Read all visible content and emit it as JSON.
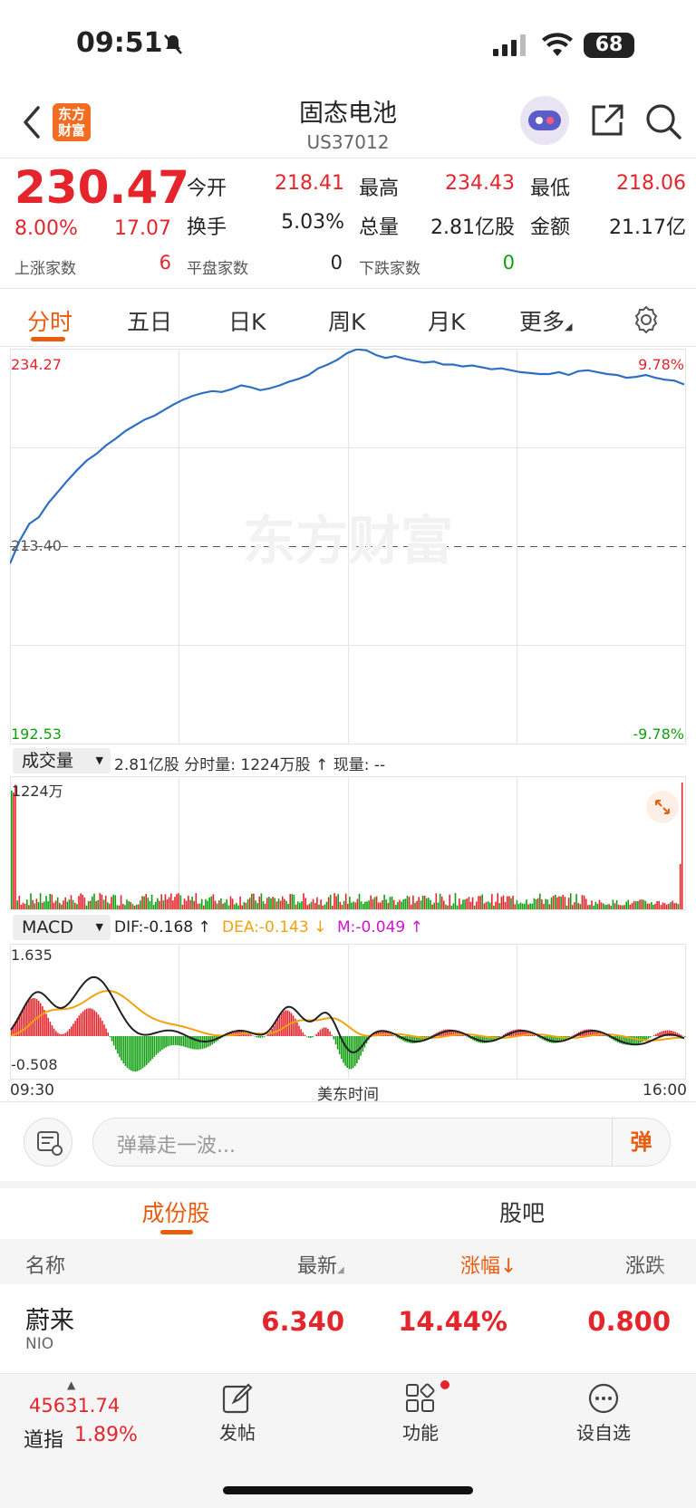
{
  "status_bar": {
    "time": "09:51",
    "battery": "68"
  },
  "header": {
    "back_icon": "chevron-left-icon",
    "logo_line1": "东方",
    "logo_line2": "财富",
    "title": "固态电池",
    "code": "US37012",
    "share_icon": "share-icon",
    "search_icon": "search-icon",
    "assistant_icon": "robot-avatar-icon"
  },
  "quote": {
    "price": "230.47",
    "change_pct": "8.00%",
    "change": "17.07",
    "open_label": "今开",
    "open": "218.41",
    "high_label": "最高",
    "high": "234.43",
    "low_label": "最低",
    "low": "218.06",
    "turnover_label": "换手",
    "turnover": "5.03%",
    "volume_label": "总量",
    "volume": "2.81亿股",
    "amount_label": "金额",
    "amount": "21.17亿",
    "up_label": "上涨家数",
    "up": "6",
    "flat_label": "平盘家数",
    "flat": "0",
    "down_label": "下跌家数",
    "down": "0"
  },
  "tabs": {
    "t1": "分时",
    "t2": "五日",
    "t3": "日K",
    "t4": "周K",
    "t5": "月K",
    "more": "更多",
    "settings_icon": "gear-icon"
  },
  "price_chart": {
    "max": "234.27",
    "mid": "213.40",
    "min": "192.53",
    "max_pct": "9.78%",
    "min_pct": "-9.78%",
    "watermark": "东方财富"
  },
  "volume_bar": {
    "select": "成交量",
    "info": "2.81亿股 分时量: 1224万股 ↑ 现量: --",
    "max": "1224万"
  },
  "macd_bar": {
    "select": "MACD",
    "dif": "DIF:-0.168 ↑",
    "dea": "DEA:-0.143 ↓",
    "m": "M:-0.049 ↑",
    "top": "1.635",
    "bottom": "-0.508"
  },
  "time_axis": {
    "start": "09:30",
    "center": "美东时间",
    "end": "16:00"
  },
  "danmaku": {
    "placeholder": "弹幕走一波...",
    "send": "弹"
  },
  "section_tabs": {
    "t1": "成份股",
    "t2": "股吧"
  },
  "table": {
    "headers": {
      "name": "名称",
      "latest": "最新",
      "pct": "涨幅↓",
      "chg": "涨跌"
    },
    "rows": [
      {
        "name": "蔚来",
        "code": "NIO",
        "latest": "6.340",
        "pct": "14.44%",
        "chg": "0.800"
      }
    ]
  },
  "bottom_bar": {
    "index_value": "45631.74",
    "index_name": "道指",
    "index_pct": "1.89%",
    "post": "发帖",
    "func": "功能",
    "watch": "设自选"
  },
  "chart_data": {
    "type": "line",
    "price_series": [
      211.6,
      214,
      215.8,
      216.5,
      218,
      219.2,
      220.4,
      221.5,
      222.5,
      223.2,
      224.1,
      224.8,
      225.6,
      226.2,
      226.8,
      227.2,
      227.8,
      228.4,
      228.9,
      229.3,
      229.6,
      229.8,
      229.7,
      230,
      230.4,
      230.2,
      229.9,
      230.1,
      230.4,
      230.8,
      231.1,
      231.5,
      232.2,
      232.6,
      233.1,
      233.8,
      234.2,
      234.1,
      233.6,
      233.3,
      233.5,
      233.2,
      233.0,
      232.8,
      232.9,
      232.6,
      232.6,
      232.4,
      232.5,
      232.3,
      232.1,
      232.2,
      232.0,
      231.8,
      231.7,
      231.6,
      231.6,
      231.8,
      231.5,
      231.9,
      232.0,
      231.8,
      231.6,
      231.5,
      231.2,
      231.3,
      231.5,
      231.2,
      231.0,
      230.9,
      230.5
    ],
    "prev_close": 213.4,
    "price_range": [
      192.53,
      234.27
    ],
    "volume_max": 1224,
    "macd_range": [
      -0.508,
      1.635
    ]
  }
}
